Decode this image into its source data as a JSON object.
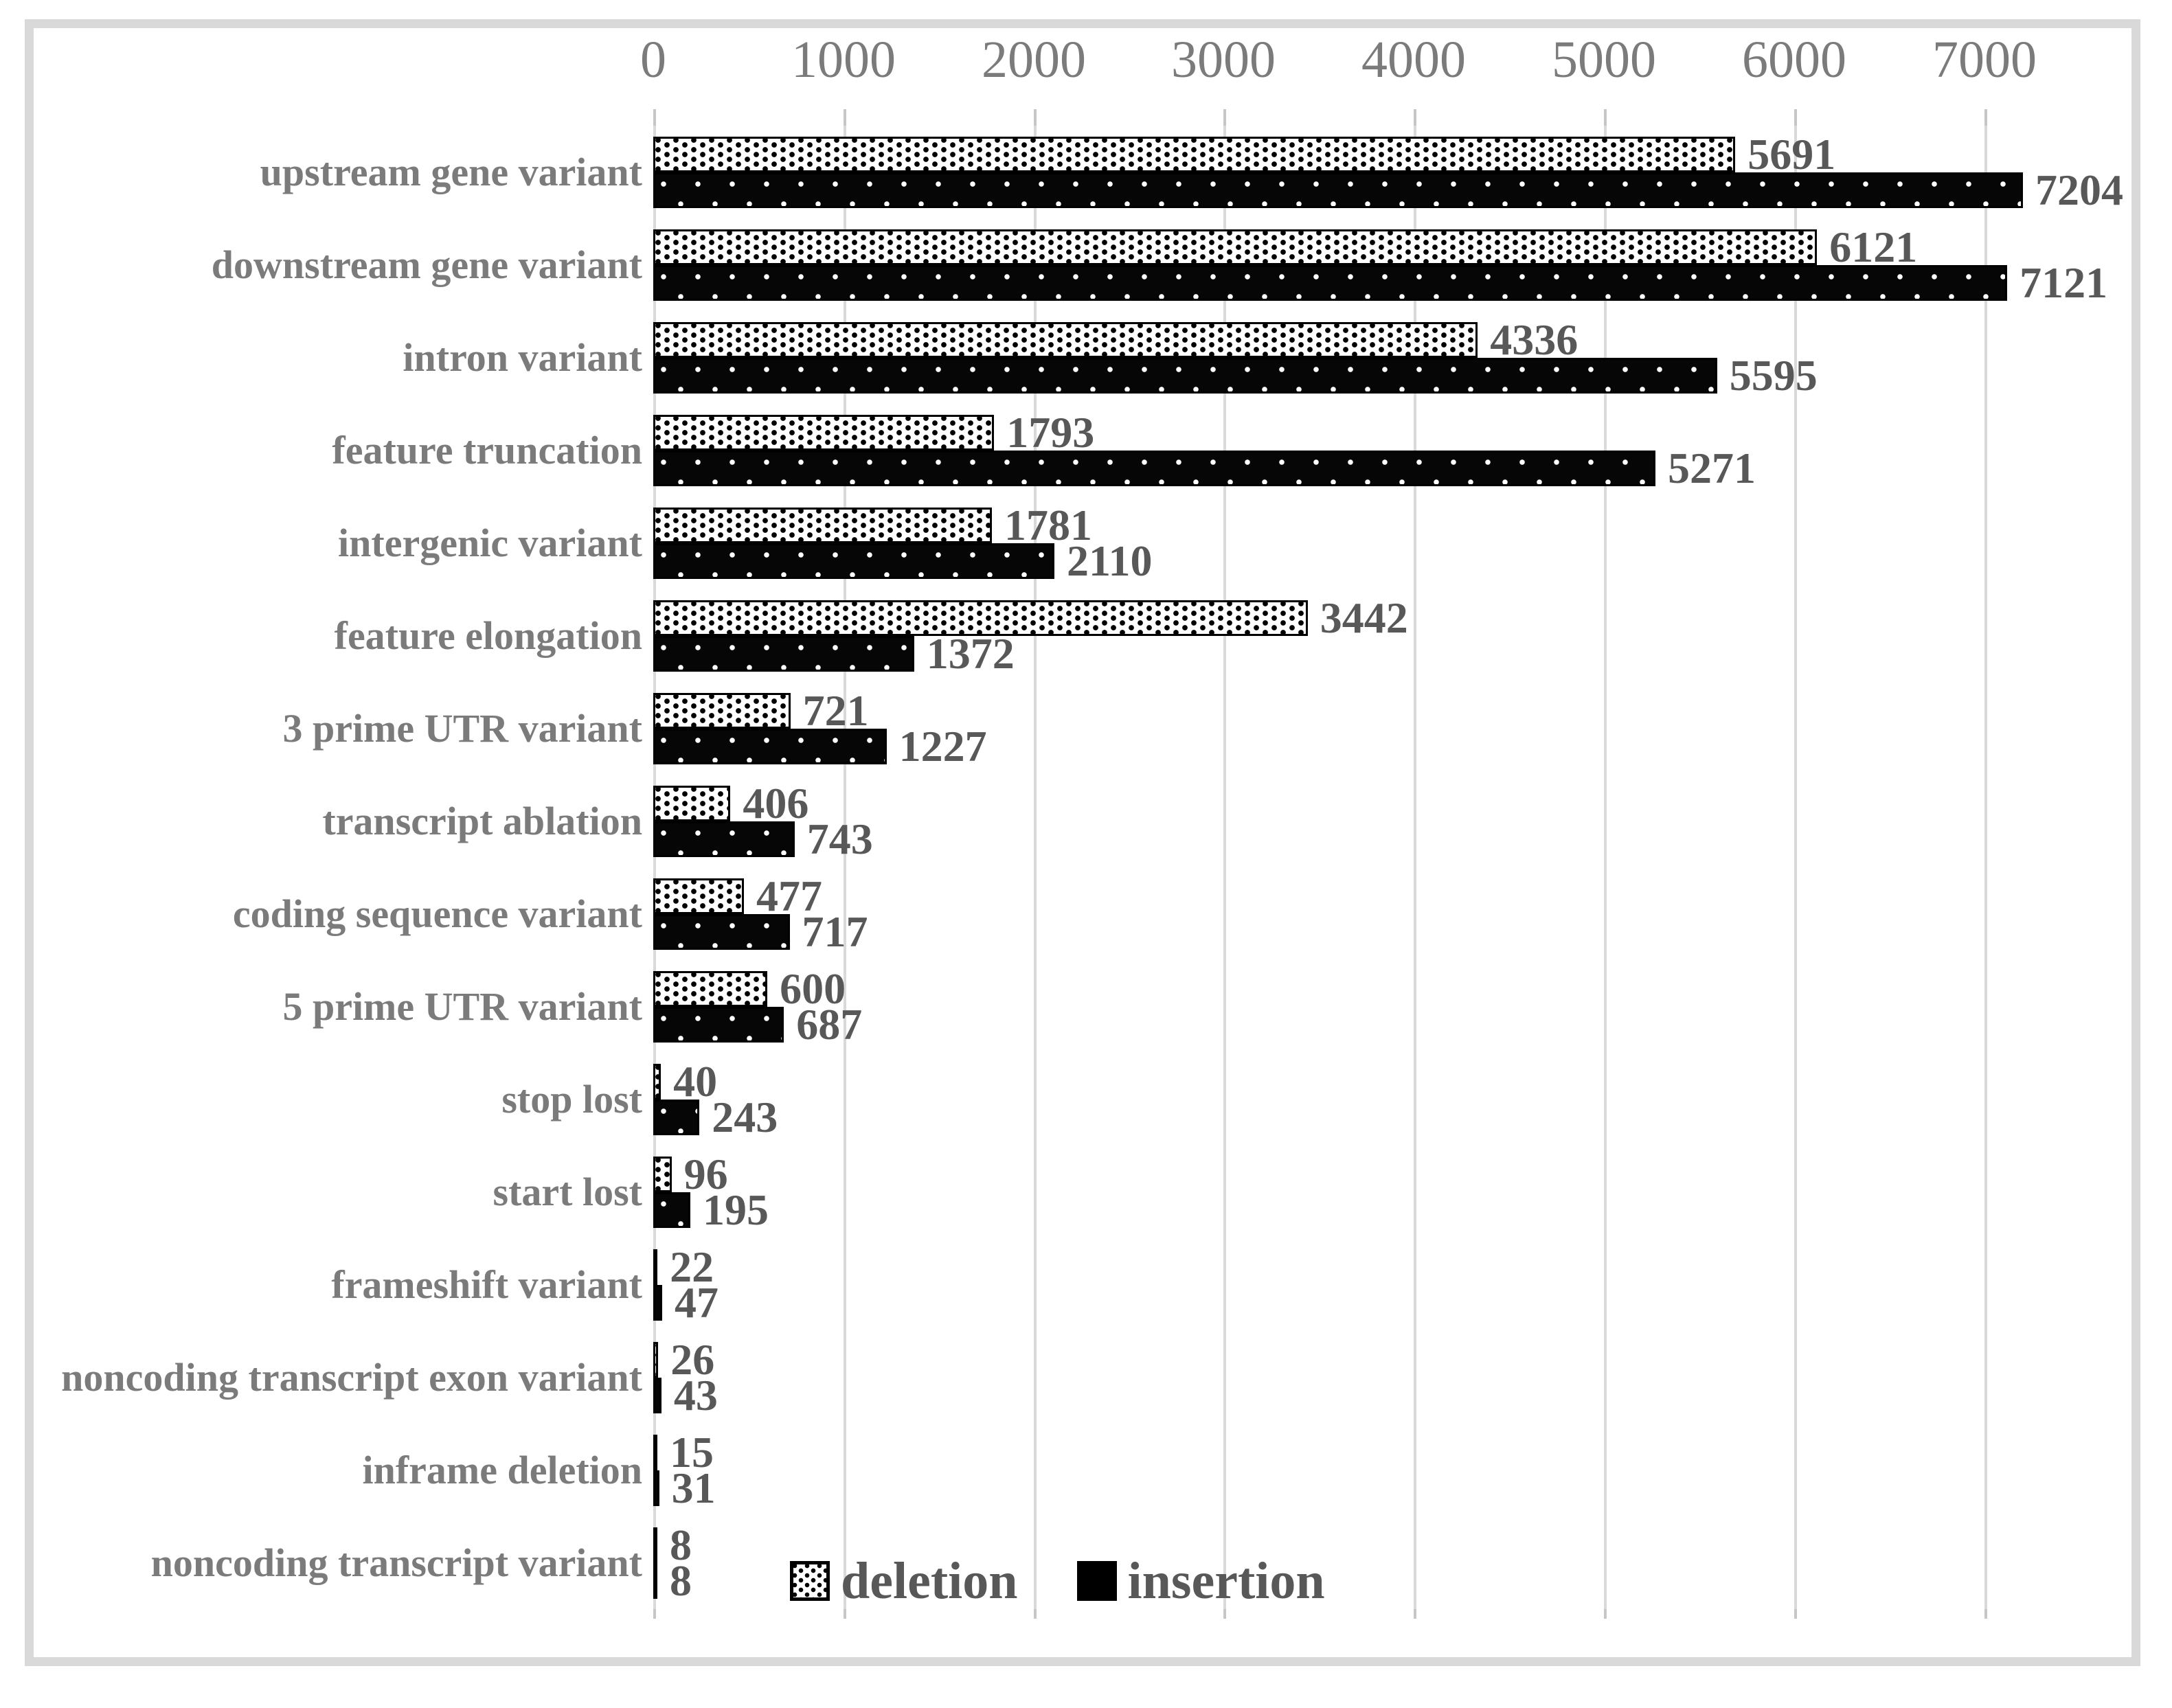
{
  "figure": {
    "background": "#ffffff",
    "frame_color": "#d9d9d9"
  },
  "colors": {
    "grid": "#d9d9d9",
    "tick": "#c6c6c6",
    "axis_label_gray": "#7b7b7b",
    "category_label_gray": "#7b7b7b",
    "value_label_gray": "#585858",
    "deletion_pattern": "black dots on white",
    "insertion_pattern": "white dots on black"
  },
  "legend": {
    "items": [
      {
        "label": "deletion",
        "swatch": "dotted-white-square"
      },
      {
        "label": "insertion",
        "swatch": "solid-black-square"
      }
    ]
  },
  "chart_data": {
    "type": "bar",
    "orientation": "horizontal",
    "title": "",
    "xlabel": "",
    "ylabel": "",
    "xlim": [
      0,
      7800
    ],
    "x_ticks": [
      0,
      1000,
      2000,
      3000,
      4000,
      5000,
      6000,
      7000
    ],
    "x_tick_labels": [
      "0",
      "1000",
      "2000",
      "3000",
      "4000",
      "5000",
      "6000",
      "7000"
    ],
    "grid": true,
    "axis_position": "top",
    "legend_position": "bottom-center",
    "value_labels": true,
    "categories": [
      "upstream gene variant",
      "downstream gene variant",
      "intron variant",
      "feature truncation",
      "intergenic variant",
      "feature elongation",
      "3 prime UTR variant",
      "transcript ablation",
      "coding sequence variant",
      "5 prime UTR variant",
      "stop lost",
      "start lost",
      "frameshift variant",
      "noncoding transcript exon variant",
      "inframe deletion",
      "noncoding transcript variant"
    ],
    "series": [
      {
        "name": "deletion",
        "values": [
          5691,
          6121,
          4336,
          1793,
          1781,
          3442,
          721,
          406,
          477,
          600,
          40,
          96,
          22,
          26,
          15,
          8
        ]
      },
      {
        "name": "insertion",
        "values": [
          7204,
          7121,
          5595,
          5271,
          2110,
          1372,
          1227,
          743,
          717,
          687,
          243,
          195,
          47,
          43,
          31,
          8
        ]
      }
    ]
  }
}
